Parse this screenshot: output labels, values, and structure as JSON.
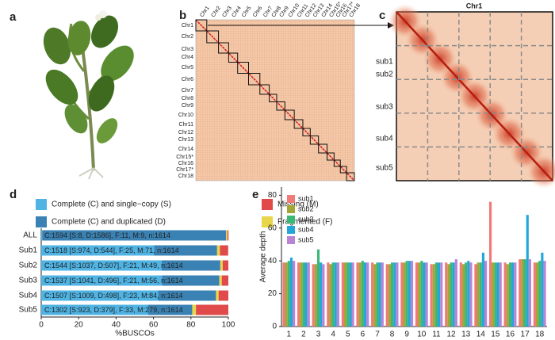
{
  "panel_labels": [
    "a",
    "b",
    "c",
    "d",
    "e"
  ],
  "hic": {
    "chromosomes": [
      "Chr1",
      "Chr2",
      "Chr3",
      "Chr4",
      "Chr5",
      "Chr6",
      "Chr7",
      "Chr8",
      "Chr9",
      "Chr10",
      "Chr11",
      "Chr12",
      "Chr13",
      "Chr14",
      "Chr15*",
      "Chr16",
      "Chr17*",
      "Chr18"
    ]
  },
  "zoom": {
    "title": "Chr1",
    "subs": [
      "sub1",
      "sub2",
      "sub3",
      "sub4",
      "sub5"
    ]
  },
  "chart_data": [
    {
      "type": "bar",
      "orientation": "horizontal",
      "stacked": true,
      "categories": [
        "ALL",
        "Sub1",
        "Sub2",
        "Sub3",
        "Sub4",
        "Sub5"
      ],
      "series": [
        {
          "name": "Complete (C) and single−copy (S)",
          "color": "#4fb3e3",
          "values": [
            0.5,
            60.3,
            64.3,
            64.5,
            62.5,
            57.2
          ]
        },
        {
          "name": "Complete (C) and duplicated (D)",
          "color": "#3a82b3",
          "values": [
            98.3,
            33.7,
            31.4,
            30.7,
            30.9,
            23.5
          ]
        },
        {
          "name": "Fragmented (F)",
          "color": "#e8d64a",
          "values": [
            0.7,
            1.5,
            1.3,
            1.3,
            1.4,
            2.0
          ]
        },
        {
          "name": "Missing (M)",
          "color": "#e04a4a",
          "values": [
            0.6,
            4.4,
            3.0,
            3.5,
            5.2,
            17.3
          ]
        }
      ],
      "bar_labels": [
        "C:1594 [S:8, D:1586], F:11, M:9, n:1614",
        "C:1518 [S:974, D:544], F:25, M:71, n:1614",
        "C:1544 [S:1037, D:507], F:21, M:49, n:1614",
        "C:1537 [S:1041, D:496], F:21, M:56, n:1614",
        "C:1507 [S:1009, D:498], F:23, M:84, n:1614",
        "C:1302 [S:923, D:379], F:33, M:279, n:1614"
      ],
      "xlim": [
        0,
        100
      ],
      "xticks": [
        0,
        20,
        40,
        60,
        80,
        100
      ],
      "xlabel": "%BUSCOs"
    },
    {
      "type": "bar",
      "grouped": true,
      "categories": [
        "1",
        "2",
        "3",
        "4",
        "5",
        "6",
        "7",
        "8",
        "9",
        "10",
        "11",
        "12",
        "13",
        "14",
        "15",
        "16",
        "17",
        "18"
      ],
      "series": [
        {
          "name": "sub1",
          "color": "#f07a78",
          "values": [
            39,
            39,
            38,
            39,
            39,
            39,
            39,
            38,
            39,
            39,
            38,
            39,
            39,
            38,
            76,
            39,
            41,
            39
          ]
        },
        {
          "name": "sub2",
          "color": "#a3a636",
          "values": [
            39,
            39,
            38,
            38,
            39,
            39,
            38,
            38,
            39,
            39,
            38,
            38,
            38,
            39,
            39,
            38,
            41,
            39
          ]
        },
        {
          "name": "sub3",
          "color": "#3bb876",
          "values": [
            40,
            39,
            47,
            39,
            39,
            40,
            39,
            39,
            40,
            40,
            39,
            39,
            39,
            39,
            39,
            39,
            41,
            40
          ]
        },
        {
          "name": "sub4",
          "color": "#23a6d8",
          "values": [
            42,
            39,
            39,
            39,
            39,
            39,
            39,
            39,
            40,
            39,
            39,
            39,
            40,
            45,
            39,
            39,
            68,
            45
          ]
        },
        {
          "name": "sub5",
          "color": "#b884d6",
          "values": [
            40,
            39,
            38,
            39,
            39,
            39,
            39,
            39,
            40,
            39,
            39,
            41,
            39,
            40,
            39,
            39,
            41,
            40
          ]
        }
      ],
      "ylim": [
        0,
        85
      ],
      "yticks": [
        0,
        20,
        40,
        60,
        80
      ],
      "ylabel": "Average depth"
    }
  ]
}
